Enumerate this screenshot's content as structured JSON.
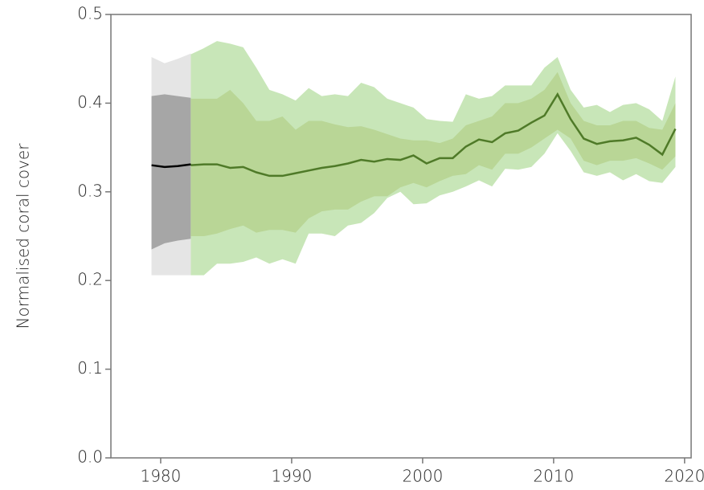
{
  "chart_data": {
    "type": "band-line",
    "y_label": "Normalised coral cover",
    "xlim": [
      1976.2,
      2020.5
    ],
    "ylim": [
      0,
      0.5
    ],
    "xticks": [
      1980,
      1990,
      2000,
      2010,
      2020
    ],
    "yticks": [
      {
        "value": 0,
        "label": "0.0"
      },
      0.1,
      0.2,
      0.3,
      0.4,
      0.5
    ],
    "grid": false,
    "series": [
      {
        "color": "#000000",
        "inner_color": "#a6a6a6",
        "outer_color": "#e5e5e5",
        "x": [
          1979.3,
          1980.3,
          1981.3,
          1982.3
        ],
        "values": [
          0.33,
          0.328,
          0.329,
          0.331
        ],
        "inner_upper": [
          0.408,
          0.41,
          0.408,
          0.406
        ],
        "inner_lower": [
          0.235,
          0.242,
          0.245,
          0.247
        ],
        "outer_upper": [
          0.452,
          0.445,
          0.45,
          0.456
        ],
        "outer_lower": [
          0.206,
          0.206,
          0.206,
          0.206
        ]
      },
      {
        "color": "#4f7a28",
        "inner_color": "#b9d696",
        "outer_color": "#c8e6b8",
        "x": [
          1982.3,
          1983.3,
          1984.3,
          1985.3,
          1986.3,
          1987.3,
          1988.3,
          1989.3,
          1990.3,
          1991.3,
          1992.3,
          1993.3,
          1994.3,
          1995.3,
          1996.3,
          1997.3,
          1998.3,
          1999.3,
          2000.3,
          2001.3,
          2002.3,
          2003.3,
          2004.3,
          2005.3,
          2006.3,
          2007.3,
          2008.3,
          2009.3,
          2010.3,
          2011.3,
          2012.3,
          2013.3,
          2014.3,
          2015.3,
          2016.3,
          2017.3,
          2018.3,
          2019.3
        ],
        "values": [
          0.33,
          0.331,
          0.331,
          0.327,
          0.328,
          0.322,
          0.318,
          0.318,
          0.321,
          0.324,
          0.327,
          0.329,
          0.332,
          0.336,
          0.334,
          0.337,
          0.336,
          0.341,
          0.332,
          0.338,
          0.338,
          0.351,
          0.359,
          0.356,
          0.366,
          0.369,
          0.378,
          0.386,
          0.41,
          0.382,
          0.36,
          0.354,
          0.357,
          0.358,
          0.361,
          0.353,
          0.342,
          0.371
        ],
        "inner_upper": [
          0.405,
          0.405,
          0.405,
          0.415,
          0.4,
          0.38,
          0.38,
          0.385,
          0.37,
          0.38,
          0.38,
          0.376,
          0.373,
          0.374,
          0.37,
          0.365,
          0.36,
          0.358,
          0.358,
          0.355,
          0.36,
          0.375,
          0.38,
          0.385,
          0.4,
          0.4,
          0.405,
          0.415,
          0.435,
          0.4,
          0.38,
          0.375,
          0.375,
          0.38,
          0.38,
          0.372,
          0.37,
          0.4
        ],
        "inner_lower": [
          0.25,
          0.25,
          0.253,
          0.258,
          0.262,
          0.254,
          0.257,
          0.257,
          0.254,
          0.27,
          0.278,
          0.28,
          0.28,
          0.289,
          0.295,
          0.295,
          0.305,
          0.31,
          0.305,
          0.312,
          0.318,
          0.32,
          0.33,
          0.325,
          0.343,
          0.343,
          0.35,
          0.36,
          0.37,
          0.36,
          0.335,
          0.33,
          0.335,
          0.335,
          0.338,
          0.332,
          0.325,
          0.34
        ],
        "outer_upper": [
          0.455,
          0.462,
          0.47,
          0.467,
          0.463,
          0.44,
          0.415,
          0.41,
          0.403,
          0.417,
          0.408,
          0.41,
          0.408,
          0.423,
          0.418,
          0.405,
          0.4,
          0.395,
          0.382,
          0.38,
          0.379,
          0.41,
          0.405,
          0.408,
          0.42,
          0.42,
          0.42,
          0.44,
          0.452,
          0.415,
          0.395,
          0.398,
          0.39,
          0.398,
          0.4,
          0.393,
          0.38,
          0.43
        ],
        "outer_lower": [
          0.206,
          0.206,
          0.219,
          0.219,
          0.221,
          0.226,
          0.219,
          0.224,
          0.219,
          0.253,
          0.253,
          0.25,
          0.262,
          0.265,
          0.276,
          0.293,
          0.3,
          0.286,
          0.287,
          0.296,
          0.3,
          0.306,
          0.313,
          0.306,
          0.326,
          0.325,
          0.328,
          0.343,
          0.366,
          0.346,
          0.322,
          0.318,
          0.322,
          0.313,
          0.32,
          0.312,
          0.31,
          0.328
        ]
      }
    ]
  }
}
